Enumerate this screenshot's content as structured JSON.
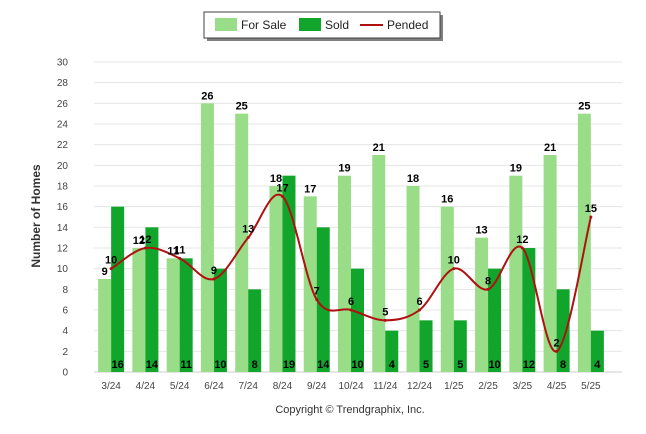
{
  "chart_data": {
    "type": "bar",
    "categories": [
      "3/24",
      "4/24",
      "5/24",
      "6/24",
      "7/24",
      "8/24",
      "9/24",
      "10/24",
      "11/24",
      "12/24",
      "1/25",
      "2/25",
      "3/25",
      "4/25",
      "5/25"
    ],
    "series": [
      {
        "name": "For Sale",
        "type": "bar",
        "color": "#99dd88",
        "values": [
          9,
          12,
          11,
          26,
          25,
          18,
          17,
          19,
          21,
          18,
          16,
          13,
          19,
          21,
          25
        ]
      },
      {
        "name": "Sold",
        "type": "bar",
        "color": "#11a52b",
        "values": [
          16,
          14,
          11,
          10,
          8,
          19,
          14,
          10,
          4,
          5,
          5,
          10,
          12,
          8,
          4
        ]
      },
      {
        "name": "Pended",
        "type": "line",
        "color": "#b01010",
        "values": [
          10,
          12,
          11,
          9,
          13,
          17,
          7,
          6,
          5,
          6,
          10,
          8,
          12,
          2,
          15
        ]
      }
    ],
    "ylabel": "Number of Homes",
    "xlabel": "",
    "ylim": [
      0,
      30
    ],
    "yticks": [
      0,
      2,
      4,
      6,
      8,
      10,
      12,
      14,
      16,
      18,
      20,
      22,
      24,
      26,
      28,
      30
    ],
    "grid": true,
    "legend_position": "top-center",
    "footer": "Copyright © Trendgraphix, Inc."
  }
}
